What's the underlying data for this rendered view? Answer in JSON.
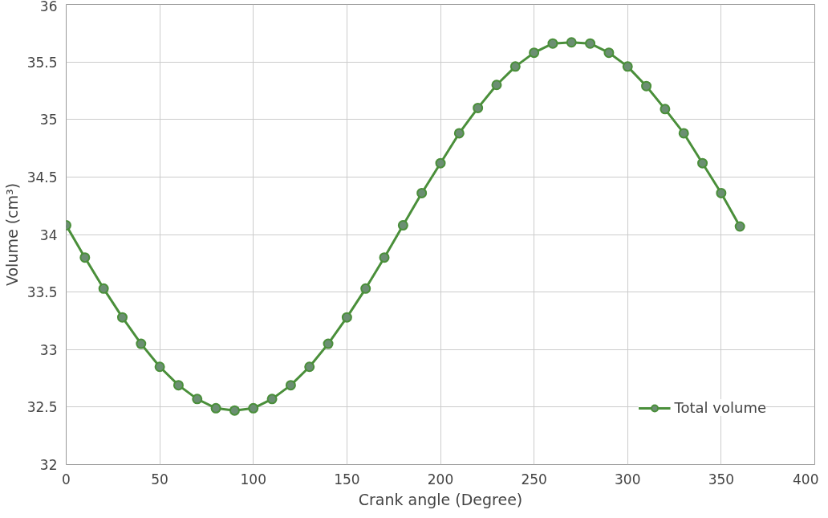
{
  "chart_data": {
    "type": "line",
    "xlabel": "Crank angle (Degree)",
    "ylabel": "Volume (cm³)",
    "x": [
      0,
      10,
      20,
      30,
      40,
      50,
      60,
      70,
      80,
      90,
      100,
      110,
      120,
      130,
      140,
      150,
      160,
      170,
      180,
      190,
      200,
      210,
      220,
      230,
      240,
      250,
      260,
      270,
      280,
      290,
      300,
      310,
      320,
      330,
      340,
      350,
      360
    ],
    "series": [
      {
        "name": "Total volume",
        "color": "#4a8f3a",
        "values": [
          34.08,
          33.8,
          33.53,
          33.28,
          33.05,
          32.85,
          32.69,
          32.57,
          32.49,
          32.47,
          32.49,
          32.57,
          32.69,
          32.85,
          33.05,
          33.28,
          33.53,
          33.8,
          34.08,
          34.36,
          34.62,
          34.88,
          35.1,
          35.3,
          35.46,
          35.58,
          35.66,
          35.67,
          35.66,
          35.58,
          35.46,
          35.29,
          35.09,
          34.88,
          34.62,
          34.36,
          34.07
        ]
      }
    ],
    "xlim": [
      0,
      400
    ],
    "xticks": [
      0,
      50,
      100,
      150,
      200,
      250,
      300,
      350,
      400
    ],
    "ylim": [
      32,
      36
    ],
    "yticks": [
      32,
      {
        "value": 32.5,
        "label": "32.5"
      },
      33,
      {
        "value": 33.5,
        "label": "33.5"
      },
      34,
      {
        "value": 34.5,
        "label": "34.5"
      },
      35,
      {
        "value": 35.5,
        "label": "35.5"
      },
      36
    ],
    "grid": true,
    "legend": "bottom right",
    "marker": "circle",
    "line_style": "solid"
  }
}
